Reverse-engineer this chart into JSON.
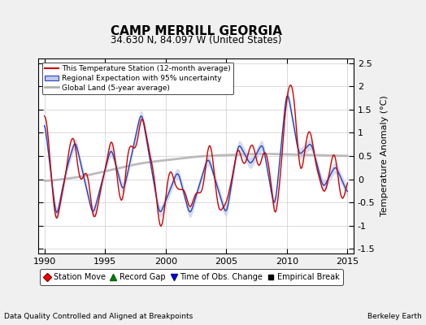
{
  "title": "CAMP MERRILL GEORGIA",
  "subtitle": "34.630 N, 84.097 W (United States)",
  "xlabel_left": "Data Quality Controlled and Aligned at Breakpoints",
  "xlabel_right": "Berkeley Earth",
  "ylabel": "Temperature Anomaly (°C)",
  "xlim": [
    1989.5,
    2015.5
  ],
  "ylim": [
    -1.6,
    2.6
  ],
  "yticks": [
    -1.5,
    -1.0,
    -0.5,
    0.0,
    0.5,
    1.0,
    1.5,
    2.0,
    2.5
  ],
  "ytick_labels": [
    "-1.5",
    "-1",
    "-0.5",
    "0",
    "0.5",
    "1",
    "1.5",
    "2",
    "2.5"
  ],
  "xticks": [
    1990,
    1995,
    2000,
    2005,
    2010,
    2015
  ],
  "red_color": "#cc0000",
  "blue_color": "#2244bb",
  "blue_fill_color": "#c0c8e8",
  "gray_color": "#b0b0b0",
  "background_color": "#f0f0f0",
  "plot_bg_color": "#ffffff",
  "legend1_labels": [
    "This Temperature Station (12-month average)",
    "Regional Expectation with 95% uncertainty",
    "Global Land (5-year average)"
  ],
  "legend2_labels": [
    "Station Move",
    "Record Gap",
    "Time of Obs. Change",
    "Empirical Break"
  ]
}
